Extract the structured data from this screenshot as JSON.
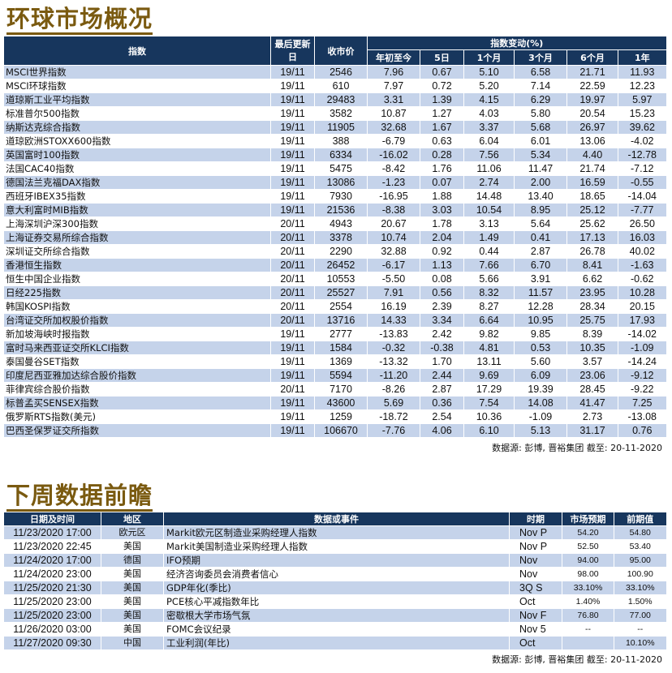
{
  "section1": {
    "title": "环球市场概况",
    "headers": {
      "index": "指数",
      "last_update": "最后更新日",
      "close": "收市价",
      "change_group": "指数变动(%)",
      "ytd": "年初至今",
      "d5": "5日",
      "m1": "1个月",
      "m3": "3个月",
      "m6": "6个月",
      "y1": "1年"
    },
    "rows": [
      {
        "name": "MSCI世界指数",
        "date": "19/11",
        "close": "2546",
        "ytd": "7.96",
        "d5": "0.67",
        "m1": "5.10",
        "m3": "6.58",
        "m6": "21.71",
        "y1": "11.93"
      },
      {
        "name": "MSCI环球指数",
        "date": "19/11",
        "close": "610",
        "ytd": "7.97",
        "d5": "0.72",
        "m1": "5.20",
        "m3": "7.14",
        "m6": "22.59",
        "y1": "12.23"
      },
      {
        "name": "道琼斯工业平均指数",
        "date": "19/11",
        "close": "29483",
        "ytd": "3.31",
        "d5": "1.39",
        "m1": "4.15",
        "m3": "6.29",
        "m6": "19.97",
        "y1": "5.97"
      },
      {
        "name": "标准普尔500指数",
        "date": "19/11",
        "close": "3582",
        "ytd": "10.87",
        "d5": "1.27",
        "m1": "4.03",
        "m3": "5.80",
        "m6": "20.54",
        "y1": "15.23"
      },
      {
        "name": "纳斯达克综合指数",
        "date": "19/11",
        "close": "11905",
        "ytd": "32.68",
        "d5": "1.67",
        "m1": "3.37",
        "m3": "5.68",
        "m6": "26.97",
        "y1": "39.62"
      },
      {
        "name": "道琼欧洲STOXX600指数",
        "date": "19/11",
        "close": "388",
        "ytd": "-6.79",
        "d5": "0.63",
        "m1": "6.04",
        "m3": "6.01",
        "m6": "13.06",
        "y1": "-4.02"
      },
      {
        "name": "英国富时100指数",
        "date": "19/11",
        "close": "6334",
        "ytd": "-16.02",
        "d5": "0.28",
        "m1": "7.56",
        "m3": "5.34",
        "m6": "4.40",
        "y1": "-12.78"
      },
      {
        "name": "法国CAC40指数",
        "date": "19/11",
        "close": "5475",
        "ytd": "-8.42",
        "d5": "1.76",
        "m1": "11.06",
        "m3": "11.47",
        "m6": "21.74",
        "y1": "-7.12"
      },
      {
        "name": "德国法兰克福DAX指数",
        "date": "19/11",
        "close": "13086",
        "ytd": "-1.23",
        "d5": "0.07",
        "m1": "2.74",
        "m3": "2.00",
        "m6": "16.59",
        "y1": "-0.55"
      },
      {
        "name": "西班牙IBEX35指数",
        "date": "19/11",
        "close": "7930",
        "ytd": "-16.95",
        "d5": "1.88",
        "m1": "14.48",
        "m3": "13.40",
        "m6": "18.65",
        "y1": "-14.04"
      },
      {
        "name": "意大利富时MIB指数",
        "date": "19/11",
        "close": "21536",
        "ytd": "-8.38",
        "d5": "3.03",
        "m1": "10.54",
        "m3": "8.95",
        "m6": "25.12",
        "y1": "-7.77"
      },
      {
        "name": "上海深圳沪深300指数",
        "date": "20/11",
        "close": "4943",
        "ytd": "20.67",
        "d5": "1.78",
        "m1": "3.13",
        "m3": "5.64",
        "m6": "25.62",
        "y1": "26.50"
      },
      {
        "name": "上海证券交易所综合指数",
        "date": "20/11",
        "close": "3378",
        "ytd": "10.74",
        "d5": "2.04",
        "m1": "1.49",
        "m3": "0.41",
        "m6": "17.13",
        "y1": "16.03"
      },
      {
        "name": "深圳证交所综合指数",
        "date": "20/11",
        "close": "2290",
        "ytd": "32.88",
        "d5": "0.92",
        "m1": "0.44",
        "m3": "2.87",
        "m6": "26.78",
        "y1": "40.02"
      },
      {
        "name": "香港恒生指数",
        "date": "20/11",
        "close": "26452",
        "ytd": "-6.17",
        "d5": "1.13",
        "m1": "7.66",
        "m3": "6.70",
        "m6": "8.41",
        "y1": "-1.63"
      },
      {
        "name": "恒生中国企业指数",
        "date": "20/11",
        "close": "10553",
        "ytd": "-5.50",
        "d5": "0.08",
        "m1": "5.66",
        "m3": "3.91",
        "m6": "6.62",
        "y1": "-0.62"
      },
      {
        "name": "日经225指数",
        "date": "20/11",
        "close": "25527",
        "ytd": "7.91",
        "d5": "0.56",
        "m1": "8.32",
        "m3": "11.57",
        "m6": "23.95",
        "y1": "10.28"
      },
      {
        "name": "韩国KOSPI指数",
        "date": "20/11",
        "close": "2554",
        "ytd": "16.19",
        "d5": "2.39",
        "m1": "8.27",
        "m3": "12.28",
        "m6": "28.34",
        "y1": "20.15"
      },
      {
        "name": "台湾证交所加权股价指数",
        "date": "20/11",
        "close": "13716",
        "ytd": "14.33",
        "d5": "3.34",
        "m1": "6.64",
        "m3": "10.95",
        "m6": "25.75",
        "y1": "17.93"
      },
      {
        "name": "新加坡海峡时报指数",
        "date": "19/11",
        "close": "2777",
        "ytd": "-13.83",
        "d5": "2.42",
        "m1": "9.82",
        "m3": "9.85",
        "m6": "8.39",
        "y1": "-14.02"
      },
      {
        "name": "富时马来西亚证交所KLCI指数",
        "date": "19/11",
        "close": "1584",
        "ytd": "-0.32",
        "d5": "-0.38",
        "m1": "4.81",
        "m3": "0.53",
        "m6": "10.35",
        "y1": "-1.09"
      },
      {
        "name": "泰国曼谷SET指数",
        "date": "19/11",
        "close": "1369",
        "ytd": "-13.32",
        "d5": "1.70",
        "m1": "13.11",
        "m3": "5.60",
        "m6": "3.57",
        "y1": "-14.24"
      },
      {
        "name": "印度尼西亚雅加达综合股价指数",
        "date": "19/11",
        "close": "5594",
        "ytd": "-11.20",
        "d5": "2.44",
        "m1": "9.69",
        "m3": "6.09",
        "m6": "23.06",
        "y1": "-9.12"
      },
      {
        "name": "菲律宾综合股价指数",
        "date": "20/11",
        "close": "7170",
        "ytd": "-8.26",
        "d5": "2.87",
        "m1": "17.29",
        "m3": "19.39",
        "m6": "28.45",
        "y1": "-9.22"
      },
      {
        "name": "标普孟买SENSEX指数",
        "date": "19/11",
        "close": "43600",
        "ytd": "5.69",
        "d5": "0.36",
        "m1": "7.54",
        "m3": "14.08",
        "m6": "41.47",
        "y1": "7.25"
      },
      {
        "name": "俄罗斯RTS指数(美元)",
        "date": "19/11",
        "close": "1259",
        "ytd": "-18.72",
        "d5": "2.54",
        "m1": "10.36",
        "m3": "-1.09",
        "m6": "2.73",
        "y1": "-13.08"
      },
      {
        "name": "巴西圣保罗证交所指数",
        "date": "19/11",
        "close": "106670",
        "ytd": "-7.76",
        "d5": "4.06",
        "m1": "6.10",
        "m3": "5.13",
        "m6": "31.17",
        "y1": "0.76"
      }
    ],
    "source": "数据源: 彭博, 晋裕集团 截至: 20-11-2020"
  },
  "section2": {
    "title": "下周数据前瞻",
    "headers": {
      "datetime": "日期及时间",
      "region": "地区",
      "event": "数据或事件",
      "period": "时期",
      "forecast": "市场预期",
      "previous": "前期值"
    },
    "rows": [
      {
        "datetime": "11/23/2020 17:00",
        "region": "欧元区",
        "event": "Markit欧元区制造业采购经理人指数",
        "period": "Nov P",
        "forecast": "54.20",
        "previous": "54.80"
      },
      {
        "datetime": "11/23/2020 22:45",
        "region": "美国",
        "event": "Markit美国制造业采购经理人指数",
        "period": "Nov P",
        "forecast": "52.50",
        "previous": "53.40"
      },
      {
        "datetime": "11/24/2020 17:00",
        "region": "德国",
        "event": "IFO预期",
        "period": "Nov",
        "forecast": "94.00",
        "previous": "95.00"
      },
      {
        "datetime": "11/24/2020 23:00",
        "region": "美国",
        "event": "经济咨询委员会消费者信心",
        "period": "Nov",
        "forecast": "98.00",
        "previous": "100.90"
      },
      {
        "datetime": "11/25/2020 21:30",
        "region": "美国",
        "event": "GDP年化(季比)",
        "period": "3Q S",
        "forecast": "33.10%",
        "previous": "33.10%"
      },
      {
        "datetime": "11/25/2020 23:00",
        "region": "美国",
        "event": "PCE核心平减指数年比",
        "period": "Oct",
        "forecast": "1.40%",
        "previous": "1.50%"
      },
      {
        "datetime": "11/25/2020 23:00",
        "region": "美国",
        "event": "密歇根大学市场气氛",
        "period": "Nov F",
        "forecast": "76.80",
        "previous": "77.00"
      },
      {
        "datetime": "11/26/2020 03:00",
        "region": "美国",
        "event": "FOMC会议纪录",
        "period": "Nov 5",
        "forecast": "--",
        "previous": "--"
      },
      {
        "datetime": "11/27/2020 09:30",
        "region": "中国",
        "event": "工业利润(年比)",
        "period": "Oct",
        "forecast": "",
        "previous": "10.10%"
      }
    ],
    "source": "数据源: 彭博, 晋裕集团 截至: 20-11-2020"
  }
}
